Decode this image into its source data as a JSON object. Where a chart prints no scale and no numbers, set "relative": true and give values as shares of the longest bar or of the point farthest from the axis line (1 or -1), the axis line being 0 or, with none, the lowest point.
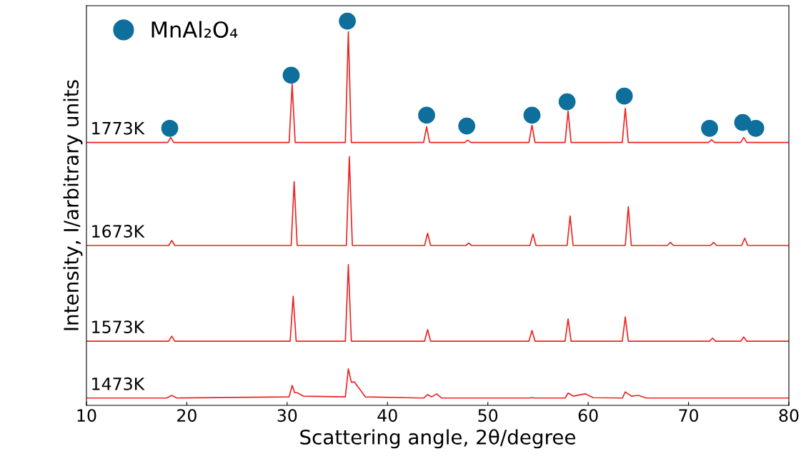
{
  "chart_data": {
    "type": "line",
    "relative": true,
    "xlabel": "Scattering angle, 2θ/degree",
    "ylabel": "Intensity, I/arbitrary units",
    "xlim": [
      10,
      80
    ],
    "xticks": [
      10,
      20,
      30,
      40,
      50,
      60,
      70,
      80
    ],
    "tick_labels": "x",
    "grid": false,
    "legend": "top left",
    "line_style": "solid",
    "series": [
      {
        "name": "1773K",
        "color": "#ee2222",
        "marker": "none",
        "x": [
          10,
          18.1,
          18.4,
          18.7,
          30.2,
          30.5,
          30.8,
          35.8,
          36.1,
          36.4,
          43.6,
          43.9,
          44.2,
          47.7,
          48.0,
          48.3,
          54.1,
          54.4,
          54.7,
          57.7,
          58.0,
          58.3,
          63.4,
          63.7,
          64.0,
          72.0,
          72.3,
          72.6,
          75.2,
          75.5,
          75.8,
          80
        ],
        "values": [
          0.684,
          0.684,
          0.697,
          0.684,
          0.684,
          0.836,
          0.684,
          0.684,
          0.972,
          0.684,
          0.684,
          0.725,
          0.684,
          0.684,
          0.69,
          0.684,
          0.684,
          0.729,
          0.684,
          0.684,
          0.766,
          0.684,
          0.684,
          0.773,
          0.684,
          0.684,
          0.691,
          0.684,
          0.684,
          0.697,
          0.684,
          0.684
        ]
      },
      {
        "name": "1673K",
        "color": "#ee2222",
        "marker": "none",
        "x": [
          10,
          18.2,
          18.5,
          18.8,
          30.4,
          30.7,
          31.0,
          35.9,
          36.2,
          36.5,
          43.7,
          44.0,
          44.3,
          47.8,
          48.1,
          48.4,
          54.2,
          54.5,
          54.8,
          57.9,
          58.2,
          58.5,
          63.7,
          64.0,
          64.3,
          67.9,
          68.2,
          68.5,
          72.2,
          72.5,
          72.8,
          75.3,
          75.6,
          75.9,
          80
        ],
        "values": [
          0.416,
          0.416,
          0.429,
          0.416,
          0.416,
          0.582,
          0.416,
          0.416,
          0.647,
          0.416,
          0.416,
          0.448,
          0.416,
          0.416,
          0.422,
          0.416,
          0.416,
          0.446,
          0.416,
          0.416,
          0.493,
          0.416,
          0.416,
          0.517,
          0.416,
          0.416,
          0.424,
          0.416,
          0.416,
          0.424,
          0.416,
          0.416,
          0.435,
          0.416,
          0.416
        ]
      },
      {
        "name": "1573K",
        "color": "#ee2222",
        "marker": "none",
        "x": [
          10,
          18.2,
          18.5,
          18.8,
          30.3,
          30.6,
          30.9,
          35.8,
          36.1,
          36.4,
          43.7,
          44.0,
          44.3,
          54.1,
          54.4,
          54.7,
          57.7,
          58.0,
          58.3,
          63.4,
          63.7,
          64.0,
          72.1,
          72.4,
          72.7,
          75.2,
          75.5,
          75.8,
          80
        ],
        "values": [
          0.167,
          0.167,
          0.18,
          0.167,
          0.167,
          0.284,
          0.167,
          0.167,
          0.366,
          0.167,
          0.167,
          0.197,
          0.167,
          0.167,
          0.195,
          0.167,
          0.167,
          0.225,
          0.167,
          0.167,
          0.23,
          0.167,
          0.167,
          0.175,
          0.167,
          0.167,
          0.178,
          0.167,
          0.167
        ]
      },
      {
        "name": "1473K",
        "color": "#ee2222",
        "marker": "none",
        "x": [
          10,
          18.0,
          18.5,
          19.0,
          30.2,
          30.5,
          30.75,
          31.0,
          31.6,
          35.8,
          36.1,
          36.4,
          36.7,
          37.2,
          37.8,
          43.6,
          44.0,
          44.4,
          44.9,
          45.4,
          54.1,
          54.4,
          54.7,
          57.7,
          58.0,
          58.5,
          59.7,
          60.5,
          63.4,
          63.7,
          64.3,
          65.0,
          65.8,
          80
        ],
        "values": [
          0.019,
          0.019,
          0.026,
          0.019,
          0.022,
          0.052,
          0.033,
          0.033,
          0.024,
          0.022,
          0.095,
          0.06,
          0.061,
          0.043,
          0.022,
          0.019,
          0.028,
          0.022,
          0.03,
          0.019,
          0.019,
          0.02,
          0.019,
          0.019,
          0.032,
          0.024,
          0.03,
          0.02,
          0.019,
          0.035,
          0.024,
          0.026,
          0.019,
          0.019
        ]
      },
      {
        "name": "MnAl₂O₄",
        "type": "scatter",
        "color": "#0e6f9c",
        "marker": "circle",
        "x": [
          18.3,
          30.4,
          36.0,
          43.9,
          47.9,
          54.4,
          57.9,
          63.6,
          72.1,
          75.4,
          76.7
        ],
        "values": [
          0.721,
          0.859,
          1.0,
          0.755,
          0.727,
          0.755,
          0.79,
          0.805,
          0.721,
          0.736,
          0.721
        ]
      }
    ]
  }
}
